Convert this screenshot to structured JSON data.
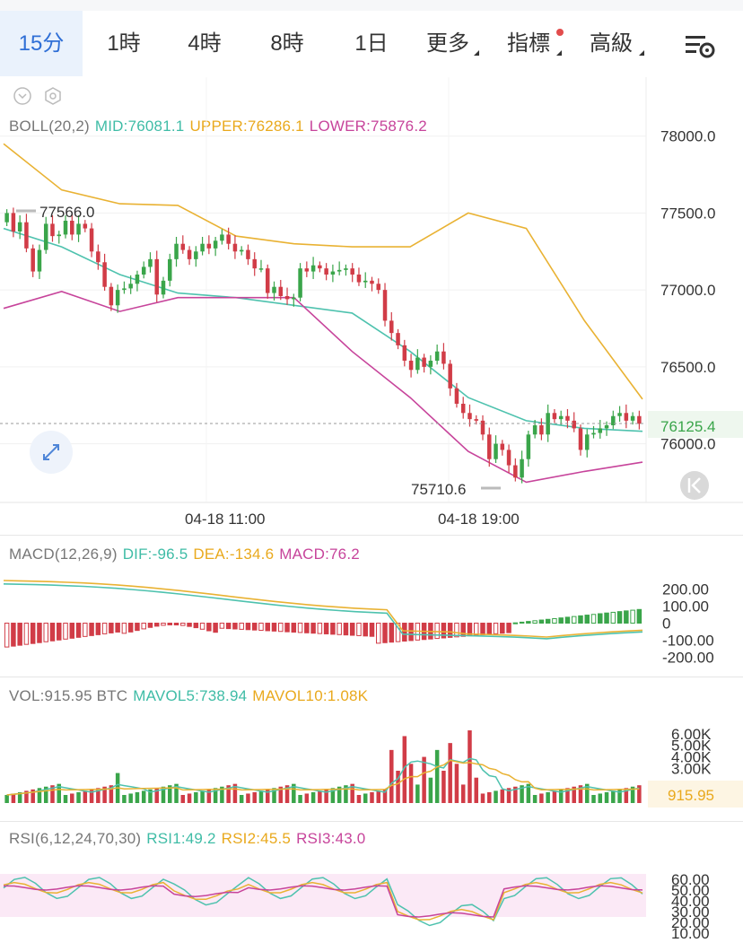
{
  "toolbar": {
    "tabs": [
      {
        "label": "15分",
        "active": true
      },
      {
        "label": "1時",
        "active": false
      },
      {
        "label": "4時",
        "active": false
      },
      {
        "label": "8時",
        "active": false
      },
      {
        "label": "1日",
        "active": false
      },
      {
        "label": "更多",
        "active": false,
        "has_dropdown": true
      },
      {
        "label": "指標",
        "active": false,
        "has_dropdown": true,
        "has_dot": true
      },
      {
        "label": "高級",
        "active": false,
        "has_dropdown": true
      }
    ],
    "settings_icon": "chart-settings-icon"
  },
  "colors": {
    "up": "#3aa54a",
    "down": "#d13c47",
    "mid": "#4ec2ae",
    "upper": "#e9b233",
    "lower": "#c7449b",
    "accent": "#2f6fd6"
  },
  "main": {
    "boll_label": "BOLL(20,2)",
    "mid_label": "MID:76081.1",
    "upper_label": "UPPER:76286.1",
    "lower_label": "LOWER:75876.2",
    "high_marker": "77566.0",
    "low_marker": "75710.6",
    "last_price": "76125.4",
    "x_labels": [
      "04-18 11:00",
      "04-18 19:00"
    ],
    "y_ticks": [
      "78000.0",
      "77500.0",
      "77000.0",
      "76500.0",
      "76000.0"
    ]
  },
  "macd": {
    "title": "MACD(12,26,9)",
    "dif_label": "DIF:-96.5",
    "dea_label": "DEA:-134.6",
    "macd_label": "MACD:76.2",
    "y_ticks": [
      "200.00",
      "100.00",
      "0",
      "-100.00",
      "-200.00"
    ]
  },
  "vol": {
    "title": "VOL:915.95 BTC",
    "mavol5_label": "MAVOL5:738.94",
    "mavol10_label": "MAVOL10:1.08K",
    "current": "915.95",
    "y_ticks": [
      "6.00K",
      "5.00K",
      "4.00K",
      "3.00K"
    ]
  },
  "rsi": {
    "title": "RSI(6,12,24,70,30)",
    "rsi1_label": "RSI1:49.2",
    "rsi2_label": "RSI2:45.5",
    "rsi3_label": "RSI3:43.0",
    "y_ticks": [
      "60.00",
      "50.00",
      "40.00",
      "30.00",
      "20.00",
      "10.00"
    ]
  },
  "chart_data": {
    "type": "line",
    "interval": "15分",
    "series": [
      {
        "name": "close",
        "values": [
          77500,
          77380,
          77440,
          77270,
          77120,
          77260,
          77430,
          77350,
          77360,
          77450,
          77360,
          77430,
          77400,
          77250,
          77180,
          77020,
          76900,
          77000,
          77010,
          77040,
          77100,
          77150,
          77200,
          76970,
          77060,
          77200,
          77300,
          77260,
          77200,
          77250,
          77300,
          77270,
          77320,
          77360,
          77300,
          77250,
          77260,
          77200,
          77140,
          77140,
          76980,
          77020,
          76960,
          76940,
          76950,
          77140,
          77120,
          77160,
          77140,
          77100,
          77120,
          77130,
          77140,
          77100,
          77050,
          77060,
          77040,
          77000,
          76800,
          76720,
          76640,
          76540,
          76480,
          76560,
          76500,
          76540,
          76600,
          76520,
          76360,
          76260,
          76200,
          76160,
          76150,
          76060,
          75900,
          76000,
          75960,
          75860,
          75780,
          75900,
          76060,
          76120,
          76060,
          76200,
          76160,
          76180,
          76150,
          76100,
          75960,
          76060,
          76070,
          76100,
          76120,
          76180,
          76200,
          76150,
          76180,
          76130
        ]
      },
      {
        "name": "MID",
        "values": [
          77400,
          77280,
          77100,
          76980,
          76950,
          76900,
          76850,
          76600,
          76300,
          76150,
          76100,
          76081
        ]
      },
      {
        "name": "UPPER",
        "values": [
          77950,
          77650,
          77560,
          77550,
          77350,
          77300,
          77280,
          77280,
          77500,
          77400,
          76800,
          76290
        ]
      },
      {
        "name": "LOWER",
        "values": [
          76880,
          76990,
          76860,
          76950,
          76950,
          76950,
          76600,
          76300,
          75950,
          75750,
          75820,
          75880
        ]
      }
    ],
    "ylim": [
      75700,
      78150
    ],
    "high": 77566.0,
    "low": 75710.6,
    "last": 76125.4,
    "macd": {
      "dif": -96.5,
      "dea": -134.6,
      "macd": 76.2,
      "ylim": [
        -250,
        250
      ]
    },
    "volume": {
      "last": 915.95,
      "mavol5": 738.94,
      "mavol10": 1080,
      "unit": "BTC",
      "ylim": [
        0,
        7000
      ]
    },
    "rsi": {
      "rsi1": 49.2,
      "rsi2": 45.5,
      "rsi3": 43.0,
      "ylim": [
        5,
        65
      ]
    }
  }
}
